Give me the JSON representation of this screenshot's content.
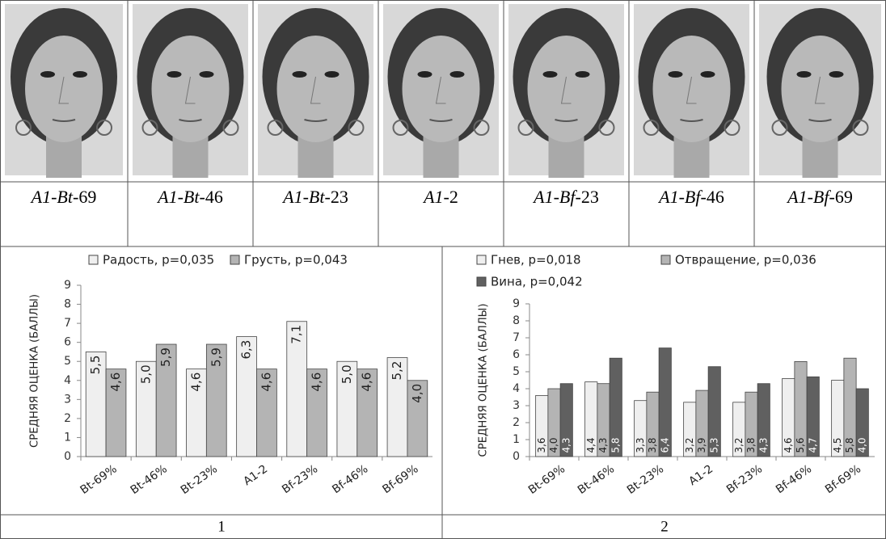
{
  "faces": {
    "labels": [
      "A1-Bt-69",
      "A1-Bt-46",
      "A1-Bt-23",
      "A1-2",
      "A1-Bf-23",
      "A1-Bf-46",
      "A1-Bf-69"
    ]
  },
  "chart_data": [
    {
      "type": "bar",
      "y_label": "СРЕДНЯЯ ОЦЕНКА (БАЛЛЫ)",
      "categories": [
        "Bt-69%",
        "Bt-46%",
        "Bt-23%",
        "A1-2",
        "Bf-23%",
        "Bf-46%",
        "Bf-69%"
      ],
      "series": [
        {
          "name": "Радость, p=0,035",
          "color": "#efefef",
          "values": [
            5.5,
            5.0,
            4.6,
            6.3,
            7.1,
            5.0,
            5.2
          ],
          "value_labels": [
            "5,5",
            "5,0",
            "4,6",
            "6,3",
            "7,1",
            "5,0",
            "5,2"
          ]
        },
        {
          "name": "Грусть, p=0,043",
          "color": "#b4b4b4",
          "values": [
            4.6,
            5.9,
            5.9,
            4.6,
            4.6,
            4.6,
            4.0
          ],
          "value_labels": [
            "4,6",
            "5,9",
            "5,9",
            "4,6",
            "4,6",
            "4,6",
            "4,0"
          ]
        }
      ],
      "ylim": [
        0,
        9
      ],
      "yticks": [
        0,
        1,
        2,
        3,
        4,
        5,
        6,
        7,
        8,
        9
      ],
      "label_position": "inside_end"
    },
    {
      "type": "bar",
      "y_label": "СРЕДНЯЯ ОЦЕНКА (БАЛЛЫ)",
      "categories": [
        "Bt-69%",
        "Bt-46%",
        "Bt-23%",
        "A1-2",
        "Bf-23%",
        "Bf-46%",
        "Bf-69%"
      ],
      "series": [
        {
          "name": "Гнев, p=0,018",
          "color": "#efefef",
          "values": [
            3.6,
            4.4,
            3.3,
            3.2,
            3.2,
            4.6,
            4.5
          ],
          "value_labels": [
            "3,6",
            "4,4",
            "3,3",
            "3,2",
            "3,2",
            "4,6",
            "4,5"
          ]
        },
        {
          "name": "Отвращение, p=0,036",
          "color": "#b4b4b4",
          "values": [
            4.0,
            4.3,
            3.8,
            3.9,
            3.8,
            5.6,
            5.8
          ],
          "value_labels": [
            "4,0",
            "4,3",
            "3,8",
            "3,9",
            "3,8",
            "5,6",
            "5,8"
          ]
        },
        {
          "name": "Вина, p=0,042",
          "color": "#606060",
          "values": [
            4.3,
            5.8,
            6.4,
            5.3,
            4.3,
            4.7,
            4.0
          ],
          "value_labels": [
            "4,3",
            "5,8",
            "6,4",
            "5,3",
            "4,3",
            "4,7",
            "4,0"
          ]
        }
      ],
      "ylim": [
        0,
        9
      ],
      "yticks": [
        0,
        1,
        2,
        3,
        4,
        5,
        6,
        7,
        8,
        9
      ],
      "label_position": "inside_base"
    }
  ],
  "panel_labels": [
    "1",
    "2"
  ]
}
